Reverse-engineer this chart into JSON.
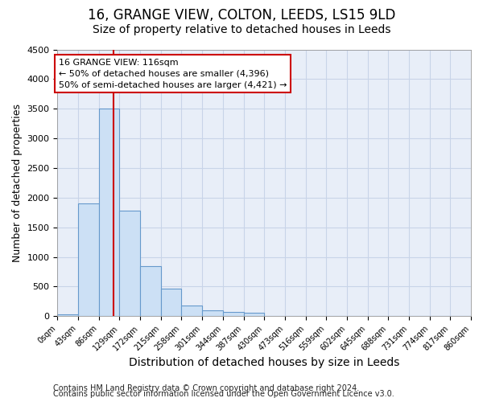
{
  "title1": "16, GRANGE VIEW, COLTON, LEEDS, LS15 9LD",
  "title2": "Size of property relative to detached houses in Leeds",
  "xlabel": "Distribution of detached houses by size in Leeds",
  "ylabel": "Number of detached properties",
  "footer1": "Contains HM Land Registry data © Crown copyright and database right 2024.",
  "footer2": "Contains public sector information licensed under the Open Government Licence v3.0.",
  "annotation_title": "16 GRANGE VIEW: 116sqm",
  "annotation_line1": "← 50% of detached houses are smaller (4,396)",
  "annotation_line2": "50% of semi-detached houses are larger (4,421) →",
  "property_size": 116,
  "bar_bins": [
    0,
    43,
    86,
    129,
    172,
    215,
    258,
    301,
    344,
    387,
    430,
    473,
    516,
    559,
    602,
    645,
    688,
    731,
    774,
    817,
    860
  ],
  "bar_heights": [
    30,
    1900,
    3500,
    1780,
    850,
    460,
    175,
    95,
    70,
    55,
    0,
    0,
    0,
    0,
    0,
    0,
    0,
    0,
    0,
    0
  ],
  "bar_color": "#cce0f5",
  "bar_edge_color": "#6699cc",
  "vline_color": "#cc0000",
  "vline_x": 116,
  "xlim": [
    0,
    860
  ],
  "ylim": [
    0,
    4500
  ],
  "yticks": [
    0,
    500,
    1000,
    1500,
    2000,
    2500,
    3000,
    3500,
    4000,
    4500
  ],
  "grid_color": "#c8d4e8",
  "annotation_box_facecolor": "#ffffff",
  "annotation_box_edgecolor": "#cc0000",
  "title1_fontsize": 12,
  "title2_fontsize": 10,
  "xlabel_fontsize": 10,
  "ylabel_fontsize": 9,
  "tick_fontsize": 8,
  "xtick_fontsize": 7,
  "footer_fontsize": 7,
  "annotation_fontsize": 8,
  "bg_color": "#ffffff",
  "plot_bg_color": "#e8eef8"
}
